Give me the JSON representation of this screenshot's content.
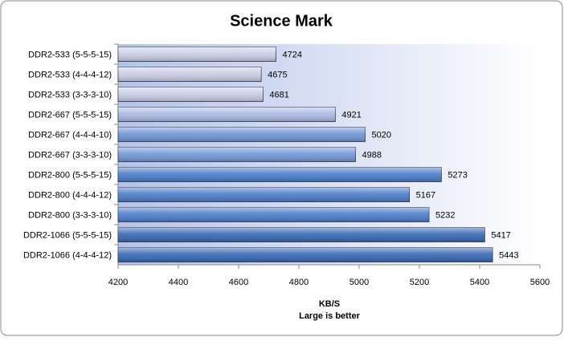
{
  "chart_data": {
    "type": "bar",
    "orientation": "horizontal",
    "title": "Science Mark",
    "x_label": [
      "KB/S",
      "Large is better"
    ],
    "categories": [
      "DDR2-533 (5-5-5-15)",
      "DDR2-533 (4-4-4-12)",
      "DDR2-533 (3-3-3-10)",
      "DDR2-667 (5-5-5-15)",
      "DDR2-667 (4-4-4-10)",
      "DDR2-667 (3-3-3-10)",
      "DDR2-800 (5-5-5-15)",
      "DDR2-800 (4-4-4-12)",
      "DDR2-800 (3-3-3-10)",
      "DDR2-1066 (5-5-5-15)",
      "DDR2-1066 (4-4-4-12)"
    ],
    "values": [
      4724,
      4675,
      4681,
      4921,
      5020,
      4988,
      5273,
      5167,
      5232,
      5417,
      5443
    ],
    "colors": [
      "#c9cde6",
      "#c9cde6",
      "#c9cde6",
      "#a9b9e3",
      "#6f96d6",
      "#6f96d6",
      "#4a7cc9",
      "#4a7cc9",
      "#4a7cc9",
      "#3668b4",
      "#3668b4"
    ],
    "xlim": [
      4200,
      5600
    ],
    "xticks": [
      4200,
      4400,
      4600,
      4800,
      5000,
      5200,
      5400,
      5600
    ],
    "grid": false
  }
}
